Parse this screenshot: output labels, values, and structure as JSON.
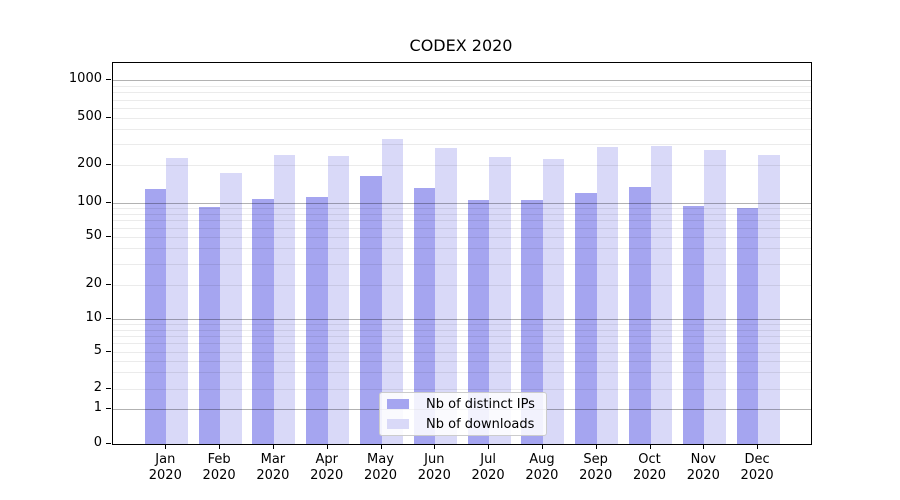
{
  "chart_data": {
    "type": "bar",
    "title": "CODEX 2020",
    "categories": [
      "Jan",
      "Feb",
      "Mar",
      "Apr",
      "May",
      "Jun",
      "Jul",
      "Aug",
      "Sep",
      "Oct",
      "Nov",
      "Dec"
    ],
    "category_year": "2020",
    "series": [
      {
        "name": "Nb of distinct IPs",
        "color": "#a5a5f0",
        "values": [
          130,
          92,
          108,
          112,
          165,
          132,
          106,
          105,
          120,
          133,
          93,
          90
        ]
      },
      {
        "name": "Nb of downloads",
        "color": "#d9d9f8",
        "values": [
          230,
          175,
          242,
          237,
          335,
          280,
          233,
          224,
          285,
          291,
          266,
          246
        ]
      }
    ],
    "xlabel": "",
    "ylabel": "",
    "yticks": [
      0,
      1,
      2,
      5,
      10,
      20,
      50,
      100,
      200,
      500,
      1000
    ],
    "ylim": [
      0,
      1400
    ],
    "yscale": "log-like (compressed linear segment between 0 and 1)",
    "grid": "horizontal, major lines at 1/10/100/1000, faint minor log subdivisions",
    "legend_position": "lower center inside plot"
  }
}
